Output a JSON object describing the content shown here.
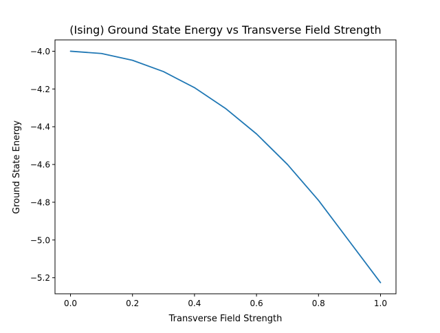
{
  "chart_data": {
    "type": "line",
    "title": "(Ising) Ground State Energy vs Transverse Field Strength",
    "xlabel": "Transverse Field Strength",
    "ylabel": "Ground State Energy",
    "xlim": [
      -0.05,
      1.05
    ],
    "ylim": [
      -5.285,
      -3.94
    ],
    "xticks": [
      0.0,
      0.2,
      0.4,
      0.6,
      0.8,
      1.0
    ],
    "xtick_labels": [
      "0.0",
      "0.2",
      "0.4",
      "0.6",
      "0.8",
      "1.0"
    ],
    "yticks": [
      -4.0,
      -4.2,
      -4.4,
      -4.6,
      -4.8,
      -5.0,
      -5.2
    ],
    "ytick_labels": [
      "−4.0",
      "−4.2",
      "−4.4",
      "−4.6",
      "−4.8",
      "−5.0",
      "−5.2"
    ],
    "grid": false,
    "series": [
      {
        "color": "#1f77b4",
        "x": [
          0.0,
          0.1,
          0.2,
          0.3,
          0.4,
          0.5,
          0.6,
          0.7,
          0.8,
          0.9,
          1.0
        ],
        "y": [
          -4.0,
          -4.012,
          -4.048,
          -4.108,
          -4.193,
          -4.303,
          -4.438,
          -4.6,
          -4.79,
          -5.008,
          -5.226
        ]
      }
    ]
  }
}
